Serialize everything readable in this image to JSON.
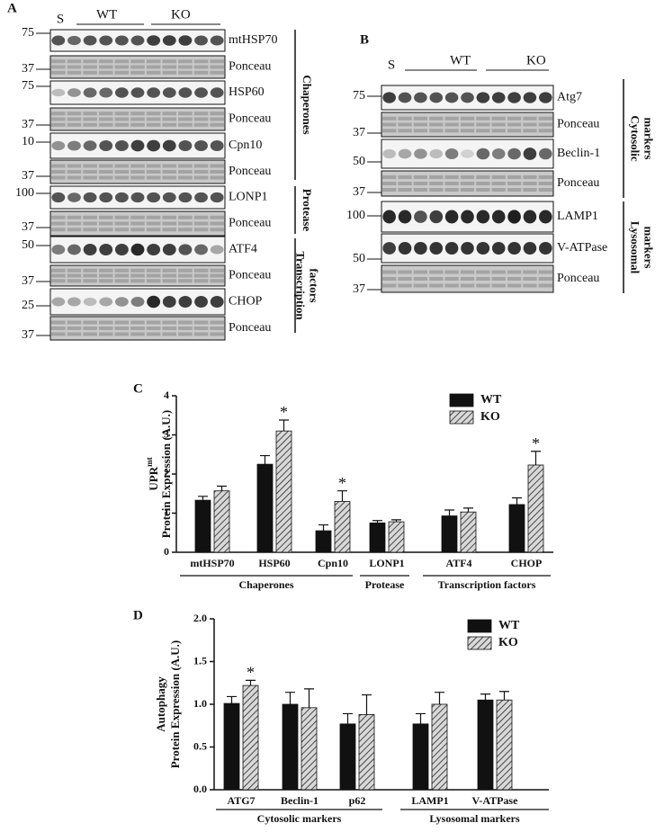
{
  "blot_a": {
    "label": "A",
    "lane_labels": {
      "sample": "S",
      "wt": "WT",
      "ko": "KO"
    },
    "strips": [
      {
        "marker": 75,
        "name": "mtHSP70"
      },
      {
        "marker": 37,
        "name": "Ponceau"
      },
      {
        "marker": 75,
        "name": "HSP60"
      },
      {
        "marker": 37,
        "name": "Ponceau"
      },
      {
        "marker": 10,
        "name": "Cpn10"
      },
      {
        "marker": 37,
        "name": "Ponceau"
      },
      {
        "marker": 100,
        "name": "LONP1"
      },
      {
        "marker": 37,
        "name": "Ponceau"
      },
      {
        "marker": 50,
        "name": "ATF4"
      },
      {
        "marker": 37,
        "name": "Ponceau"
      },
      {
        "marker": 25,
        "name": "CHOP"
      },
      {
        "marker": 37,
        "name": "Ponceau"
      }
    ],
    "groups": [
      {
        "lines": [
          "Chaperones"
        ]
      },
      {
        "lines": [
          "Protease"
        ]
      },
      {
        "lines": [
          "Transcription",
          "factors"
        ]
      }
    ]
  },
  "blot_b": {
    "label": "B",
    "lane_labels": {
      "sample": "S",
      "wt": "WT",
      "ko": "KO"
    },
    "strips": [
      {
        "marker": 75,
        "name": "Atg7"
      },
      {
        "marker": 37,
        "name": "Ponceau"
      },
      {
        "marker": 50,
        "name": "Beclin-1"
      },
      {
        "marker": 37,
        "name": "Ponceau"
      },
      {
        "marker": 100,
        "name": "LAMP1"
      },
      {
        "marker": 50,
        "name": "V-ATPase"
      },
      {
        "marker": 37,
        "name": "Ponceau"
      }
    ],
    "groups": [
      {
        "lines": [
          "Cytosolic",
          "markers"
        ]
      },
      {
        "lines": [
          "Lysosomal",
          "markers"
        ]
      }
    ]
  },
  "chart_data": [
    {
      "type": "bar",
      "label": "C",
      "ylabel": {
        "text": "UPR",
        "superscript": "mt"
      },
      "ylabel2": "Protein Expression (A.U.)",
      "groups": [
        {
          "name": "Chaperones",
          "categories": [
            "mtHSP70",
            "HSP60",
            "Cpn10"
          ]
        },
        {
          "name": "Protease",
          "categories": [
            "LONP1"
          ]
        },
        {
          "name": "Transcription factors",
          "categories": [
            "ATF4",
            "CHOP"
          ]
        }
      ],
      "series": [
        {
          "name": "WT",
          "color": "#111111",
          "values": [
            1.33,
            2.25,
            0.55,
            0.75,
            0.93,
            1.22
          ],
          "errors": [
            0.1,
            0.22,
            0.15,
            0.06,
            0.15,
            0.17
          ]
        },
        {
          "name": "KO",
          "color": "#c8c8c8",
          "hatch": true,
          "values": [
            1.57,
            3.1,
            1.3,
            0.78,
            1.03,
            2.23
          ],
          "errors": [
            0.12,
            0.28,
            0.27,
            0.05,
            0.1,
            0.35
          ],
          "significance": [
            null,
            "*",
            "*",
            null,
            null,
            "*"
          ]
        }
      ],
      "ylim": [
        0,
        4
      ],
      "yticks": [
        0,
        1,
        2,
        3,
        4
      ],
      "legend": "top-right"
    },
    {
      "type": "bar",
      "label": "D",
      "ylabel": {
        "text": "Autophagy"
      },
      "ylabel2": "Protein Expression (A.U.)",
      "groups": [
        {
          "name": "Cytosolic markers",
          "categories": [
            "ATG7",
            "Beclin-1",
            "p62"
          ]
        },
        {
          "name": "Lysosomal markers",
          "categories": [
            "LAMP1",
            "V-ATPase"
          ]
        }
      ],
      "series": [
        {
          "name": "WT",
          "color": "#111111",
          "values": [
            1.01,
            1.0,
            0.77,
            0.77,
            1.05
          ],
          "errors": [
            0.08,
            0.14,
            0.12,
            0.12,
            0.07
          ]
        },
        {
          "name": "KO",
          "color": "#c8c8c8",
          "hatch": true,
          "values": [
            1.22,
            0.96,
            0.88,
            1.0,
            1.05
          ],
          "errors": [
            0.06,
            0.22,
            0.23,
            0.14,
            0.1
          ],
          "significance": [
            "*",
            null,
            null,
            null,
            null
          ]
        }
      ],
      "ylim": [
        0,
        2
      ],
      "yticks": [
        {
          "value": 0,
          "label": "0.0"
        },
        {
          "value": 0.5,
          "label": "0.5"
        },
        {
          "value": 1,
          "label": "1.0"
        },
        {
          "value": 1.5,
          "label": "1.5"
        },
        {
          "value": 2,
          "label": "2.0"
        }
      ],
      "legend": "top-right"
    }
  ]
}
